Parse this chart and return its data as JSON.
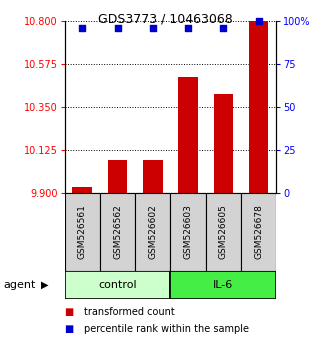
{
  "title": "GDS3773 / 10463068",
  "samples": [
    "GSM526561",
    "GSM526562",
    "GSM526602",
    "GSM526603",
    "GSM526605",
    "GSM526678"
  ],
  "groups": [
    {
      "name": "control",
      "color": "#ccffcc",
      "samples": [
        0,
        1,
        2
      ]
    },
    {
      "name": "IL-6",
      "color": "#44ee44",
      "samples": [
        3,
        4,
        5
      ]
    }
  ],
  "red_values": [
    9.93,
    10.075,
    10.075,
    10.51,
    10.42,
    10.8
  ],
  "blue_values": [
    96,
    96,
    96,
    96,
    96,
    100
  ],
  "ylim_left": [
    9.9,
    10.8
  ],
  "ylim_right": [
    0,
    100
  ],
  "yticks_left": [
    9.9,
    10.125,
    10.35,
    10.575,
    10.8
  ],
  "yticks_right": [
    0,
    25,
    50,
    75,
    100
  ],
  "bar_color": "#cc0000",
  "dot_color": "#0000cc",
  "sample_box_color": "#d3d3d3",
  "legend_items": [
    {
      "color": "#cc0000",
      "label": "transformed count"
    },
    {
      "color": "#0000cc",
      "label": "percentile rank within the sample"
    }
  ]
}
